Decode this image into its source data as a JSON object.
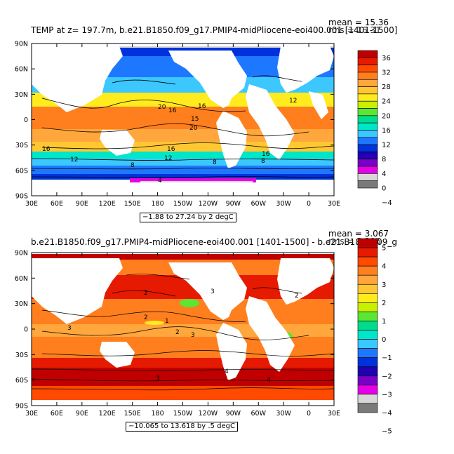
{
  "panels": [
    {
      "title": "TEMP at z= 197.7m, b.e21.B1850.f09_g17.PMIP4-midPliocene-eoi400.001 [1401-1500]",
      "stat_mean": "mean = 15.36",
      "stat_rms": "rms = 16.31",
      "range_note": "−1.88 to 27.24 by 2 degC",
      "contour_labels": [
        "20",
        "16",
        "16",
        "15",
        "20",
        "16",
        "12",
        "8",
        "4",
        "16",
        "12",
        "8",
        "16",
        "12",
        "8"
      ],
      "colorbar": {
        "labels": [
          "36",
          "32",
          "28",
          "24",
          "20",
          "16",
          "12",
          "8",
          "4",
          "0",
          "−4"
        ],
        "colors": [
          "#c00000",
          "#e61a00",
          "#ff4a00",
          "#ff7f1e",
          "#ffa63c",
          "#ffc832",
          "#ffeb1e",
          "#c8f000",
          "#5ae632",
          "#00dc8c",
          "#00e6c8",
          "#3cc8ff",
          "#1e78ff",
          "#0032dc",
          "#2000b0",
          "#7a00c8",
          "#e600e6",
          "#d7d7d7",
          "#7a7a7a"
        ]
      }
    },
    {
      "title": "b.e21.B1850.f09_g17.PMIP4-midPliocene-eoi400.001 [1401-1500] - b.e21.B1850.f09_g",
      "stat_mean": "mean = 3.067",
      "stat_rms": "rms = 3.296",
      "range_note": "−10.065 to 13.618 by .5 degC",
      "contour_labels": [
        "2",
        "3",
        "2",
        "3",
        "1",
        "2",
        "3",
        "4",
        "3",
        "2",
        "4"
      ],
      "colorbar": {
        "labels": [
          "5",
          "4",
          "3",
          "2",
          "1",
          "0",
          "−1",
          "−2",
          "−3",
          "−4",
          "−5"
        ],
        "colors": [
          "#c00000",
          "#e61a00",
          "#ff4a00",
          "#ff7f1e",
          "#ffa63c",
          "#ffc832",
          "#ffeb1e",
          "#c8f000",
          "#5ae632",
          "#00dc8c",
          "#00e6c8",
          "#3cc8ff",
          "#1e78ff",
          "#0032dc",
          "#2000b0",
          "#7a00c8",
          "#e600e6",
          "#d7d7d7",
          "#7a7a7a"
        ]
      }
    }
  ],
  "lat_labels": [
    "90N",
    "60N",
    "30N",
    "0",
    "30S",
    "60S",
    "90S"
  ],
  "lon_labels": [
    "30E",
    "60E",
    "90E",
    "120E",
    "150E",
    "180",
    "150W",
    "120W",
    "90W",
    "60W",
    "30W",
    "0",
    "30E"
  ]
}
